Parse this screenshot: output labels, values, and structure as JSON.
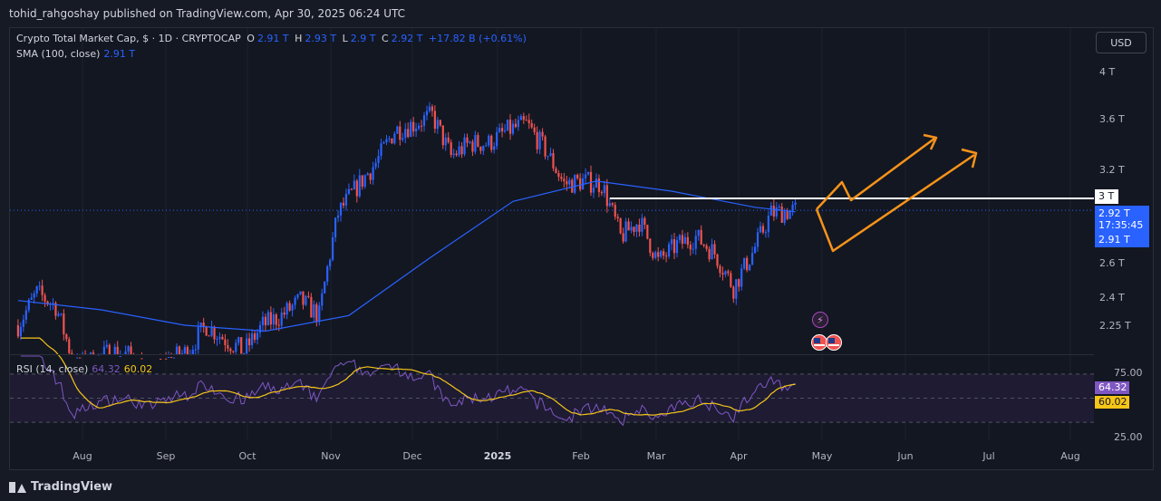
{
  "header": {
    "publisher_line": "tohid_rahgoshay published on TradingView.com, Apr 30, 2025 06:24 UTC"
  },
  "legend": {
    "symbol": "Crypto Total Market Cap, $ · 1D · CRYPTOCAP",
    "o_label": "O",
    "o_value": "2.91 T",
    "h_label": "H",
    "h_value": "2.93 T",
    "l_label": "L",
    "l_value": "2.9 T",
    "c_label": "C",
    "c_value": "2.92 T",
    "change": "+17.82 B (+0.61%)",
    "sma_label": "SMA (100, close)",
    "sma_value": "2.91 T",
    "rsi_label": "RSI (14, close)",
    "rsi_value": "64.32",
    "rsi_ma_value": "60.02"
  },
  "currency_button": "USD",
  "price_axis": [
    "4 T",
    "3.6 T",
    "3.2 T",
    "2.6 T",
    "2.4 T",
    "2.25 T"
  ],
  "price_tags": {
    "level": "3 T",
    "current": "2.92 T",
    "countdown": "17:35:45",
    "sma": "2.91 T"
  },
  "rsi_axis": [
    "75.00",
    "25.00"
  ],
  "rsi_tags": {
    "rsi": "64.32",
    "rsi_ma": "60.02"
  },
  "time_axis": [
    "Aug",
    "Sep",
    "Oct",
    "Nov",
    "Dec",
    "2025",
    "Feb",
    "Mar",
    "Apr",
    "May",
    "Jun",
    "Jul",
    "Aug"
  ],
  "footer": {
    "brand": "TradingView"
  },
  "colors": {
    "up": "#2962ff",
    "down": "#ef5350",
    "sma": "#2962ff",
    "rsi": "#7e57c2",
    "rsi_ma": "#f5c518",
    "projection": "#f7931a",
    "level": "#ffffff"
  },
  "chart_data": {
    "type": "candlestick",
    "symbol": "CRYPTOCAP:TOTAL",
    "interval": "1D",
    "yscale": "log",
    "ylim": [
      2.1,
      4.3
    ],
    "close_path": [
      [
        "2024-07-15",
        2.25
      ],
      [
        "2024-07-22",
        2.42
      ],
      [
        "2024-07-29",
        2.35
      ],
      [
        "2024-08-05",
        2.05
      ],
      [
        "2024-08-12",
        2.08
      ],
      [
        "2024-08-19",
        2.12
      ],
      [
        "2024-08-26",
        2.1
      ],
      [
        "2024-09-02",
        2.02
      ],
      [
        "2024-09-09",
        2.08
      ],
      [
        "2024-09-16",
        2.12
      ],
      [
        "2024-09-23",
        2.25
      ],
      [
        "2024-09-30",
        2.18
      ],
      [
        "2024-10-07",
        2.12
      ],
      [
        "2024-10-14",
        2.25
      ],
      [
        "2024-10-21",
        2.3
      ],
      [
        "2024-10-28",
        2.38
      ],
      [
        "2024-11-04",
        2.3
      ],
      [
        "2024-11-11",
        2.9
      ],
      [
        "2024-11-18",
        3.08
      ],
      [
        "2024-11-25",
        3.25
      ],
      [
        "2024-12-02",
        3.5
      ],
      [
        "2024-12-09",
        3.55
      ],
      [
        "2024-12-16",
        3.62
      ],
      [
        "2024-12-23",
        3.3
      ],
      [
        "2024-12-30",
        3.4
      ],
      [
        "2025-01-06",
        3.4
      ],
      [
        "2025-01-13",
        3.5
      ],
      [
        "2025-01-20",
        3.55
      ],
      [
        "2025-01-27",
        3.35
      ],
      [
        "2025-02-03",
        3.1
      ],
      [
        "2025-02-10",
        3.12
      ],
      [
        "2025-02-17",
        3.1
      ],
      [
        "2025-02-24",
        2.75
      ],
      [
        "2025-03-03",
        2.85
      ],
      [
        "2025-03-10",
        2.6
      ],
      [
        "2025-03-17",
        2.7
      ],
      [
        "2025-03-24",
        2.75
      ],
      [
        "2025-03-31",
        2.65
      ],
      [
        "2025-04-07",
        2.45
      ],
      [
        "2025-04-14",
        2.65
      ],
      [
        "2025-04-21",
        2.9
      ],
      [
        "2025-04-30",
        2.92
      ]
    ],
    "sma_100_path": [
      [
        "2024-07-15",
        2.38
      ],
      [
        "2024-08-15",
        2.33
      ],
      [
        "2024-09-15",
        2.25
      ],
      [
        "2024-10-15",
        2.22
      ],
      [
        "2024-11-15",
        2.3
      ],
      [
        "2024-12-15",
        2.62
      ],
      [
        "2025-01-15",
        2.98
      ],
      [
        "2025-02-15",
        3.12
      ],
      [
        "2025-03-15",
        3.05
      ],
      [
        "2025-04-15",
        2.94
      ],
      [
        "2025-04-30",
        2.91
      ]
    ],
    "horizontal_level": 3.0,
    "rsi_ylim": [
      15,
      85
    ],
    "rsi_levels": [
      70,
      50,
      30
    ]
  }
}
